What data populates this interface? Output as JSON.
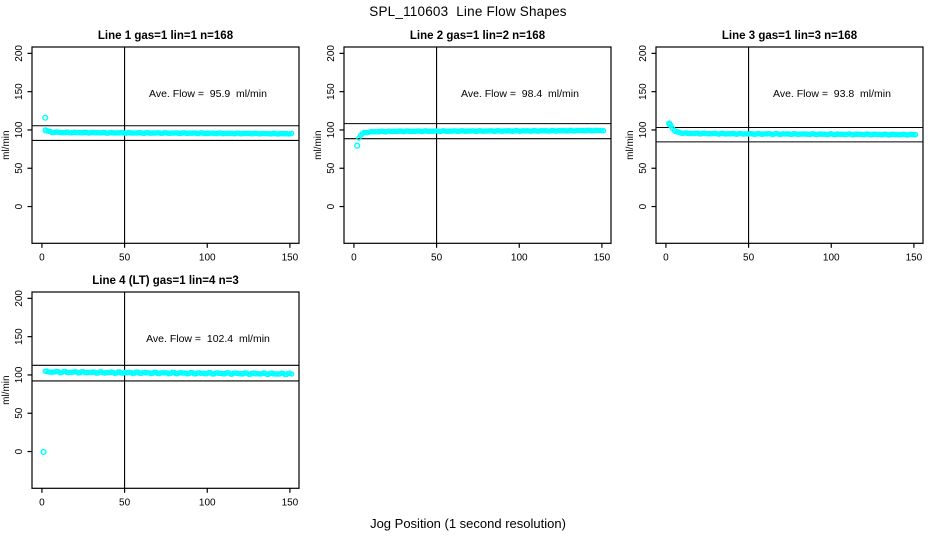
{
  "page": {
    "main_title": "SPL_110603  Line Flow Shapes",
    "footer_xlabel": "Jog Position (1 second resolution)",
    "colors": {
      "point_color": "#00ffff",
      "line_color": "#000000",
      "background": "#ffffff"
    }
  },
  "chart_data": [
    {
      "type": "scatter",
      "title": "Line 1 gas=1 lin=1 n=168",
      "annotation": "Ave. Flow =  95.9  ml/min",
      "ave_flow_ml_min": 95.9,
      "n_points": 168,
      "xlabel": "Jog Position (1 second resolution)",
      "ylabel": "ml/min",
      "xlim": [
        -6,
        155.5
      ],
      "ylim": [
        -48,
        208.3
      ],
      "xticks": [
        0,
        50,
        100,
        150
      ],
      "yticks": [
        0,
        50,
        100,
        150,
        200
      ],
      "vline_x": 50,
      "hlines": [
        105.49,
        86.31
      ],
      "outliers": [
        [
          2,
          116
        ],
        [
          2.2,
          99.5
        ]
      ],
      "series_keypoints": [
        [
          3,
          99
        ],
        [
          4,
          98
        ],
        [
          6,
          97.2
        ],
        [
          12,
          96.7
        ],
        [
          40,
          96.3
        ],
        [
          90,
          95.8
        ],
        [
          151,
          95.1
        ]
      ],
      "x_start": 3,
      "x_end": 151,
      "x_step": 1,
      "jitter": 0.55
    },
    {
      "type": "scatter",
      "title": "Line 2 gas=1 lin=2 n=168",
      "annotation": "Ave. Flow =  98.4  ml/min",
      "ave_flow_ml_min": 98.4,
      "n_points": 168,
      "xlabel": "Jog Position (1 second resolution)",
      "ylabel": "ml/min",
      "xlim": [
        -6,
        155.5
      ],
      "ylim": [
        -48,
        208.3
      ],
      "xticks": [
        0,
        50,
        100,
        150
      ],
      "yticks": [
        0,
        50,
        100,
        150,
        200
      ],
      "vline_x": 50,
      "hlines": [
        108.24,
        88.56
      ],
      "outliers": [
        [
          2,
          79.5
        ]
      ],
      "series_keypoints": [
        [
          3,
          89.5
        ],
        [
          4,
          93
        ],
        [
          5,
          95
        ],
        [
          6,
          96.2
        ],
        [
          8,
          97
        ],
        [
          12,
          97.7
        ],
        [
          25,
          98.2
        ],
        [
          60,
          98.5
        ],
        [
          110,
          98.8
        ],
        [
          151,
          99.3
        ]
      ],
      "x_start": 3,
      "x_end": 151,
      "x_step": 1,
      "jitter": 0.5
    },
    {
      "type": "scatter",
      "title": "Line 3 gas=1 lin=3 n=168",
      "annotation": "Ave. Flow =  93.8  ml/min",
      "ave_flow_ml_min": 93.8,
      "n_points": 168,
      "xlabel": "Jog Position (1 second resolution)",
      "ylabel": "ml/min",
      "xlim": [
        -6,
        155.5
      ],
      "ylim": [
        -48,
        208.3
      ],
      "xticks": [
        0,
        50,
        100,
        150
      ],
      "yticks": [
        0,
        50,
        100,
        150,
        200
      ],
      "vline_x": 50,
      "hlines": [
        103.18,
        84.42
      ],
      "outliers": [
        [
          2,
          108.5
        ],
        [
          2.4,
          107
        ]
      ],
      "series_keypoints": [
        [
          3,
          105.5
        ],
        [
          4,
          102
        ],
        [
          5,
          99.5
        ],
        [
          6,
          98
        ],
        [
          8,
          96.5
        ],
        [
          12,
          95.6
        ],
        [
          40,
          95.0
        ],
        [
          100,
          94.4
        ],
        [
          151,
          93.9
        ]
      ],
      "x_start": 3,
      "x_end": 151,
      "x_step": 1,
      "jitter": 0.6
    },
    {
      "type": "scatter",
      "title": "Line 4 (LT) gas=1 lin=4 n=3",
      "annotation": "Ave. Flow =  102.4  ml/min",
      "ave_flow_ml_min": 102.4,
      "n_points": 3,
      "xlabel": "Jog Position (1 second resolution)",
      "ylabel": "ml/min",
      "xlim": [
        -6,
        155.5
      ],
      "ylim": [
        -48,
        208.3
      ],
      "xticks": [
        0,
        50,
        100,
        150
      ],
      "yticks": [
        0,
        50,
        100,
        150,
        200
      ],
      "vline_x": 50,
      "hlines": [
        112.64,
        92.16
      ],
      "outliers": [
        [
          1,
          -0.5
        ]
      ],
      "series_keypoints": [
        [
          2,
          104.2
        ],
        [
          10,
          103.8
        ],
        [
          30,
          103.3
        ],
        [
          60,
          102.8
        ],
        [
          90,
          102.3
        ],
        [
          120,
          101.9
        ],
        [
          151,
          101.4
        ]
      ],
      "x_start": 2,
      "x_end": 151,
      "x_step": 1,
      "jitter": 1.1
    }
  ]
}
